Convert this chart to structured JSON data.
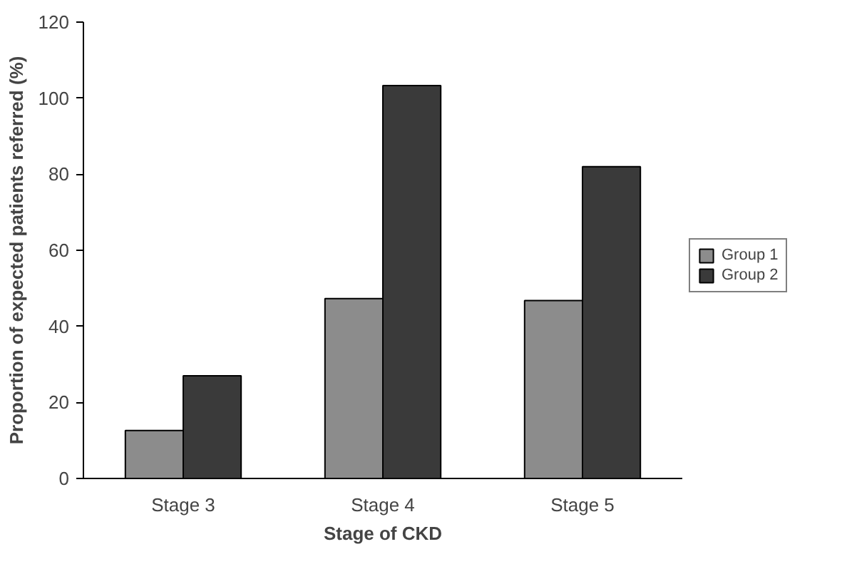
{
  "chart_data": {
    "type": "bar",
    "xlabel": "Stage of CKD",
    "ylabel": "Proportion of expected patients referred (%)",
    "categories": [
      "Stage 3",
      "Stage 4",
      "Stage 5"
    ],
    "series": [
      {
        "name": "Group 1",
        "color": "#8c8c8c",
        "values": [
          12.6,
          47.3,
          46.8
        ]
      },
      {
        "name": "Group 2",
        "color": "#3a3a3a",
        "values": [
          27,
          103.3,
          82
        ]
      }
    ],
    "ylim": [
      0,
      120
    ],
    "yticks": [
      0,
      20,
      40,
      60,
      80,
      100,
      120
    ],
    "grid": false,
    "legend": "right"
  }
}
